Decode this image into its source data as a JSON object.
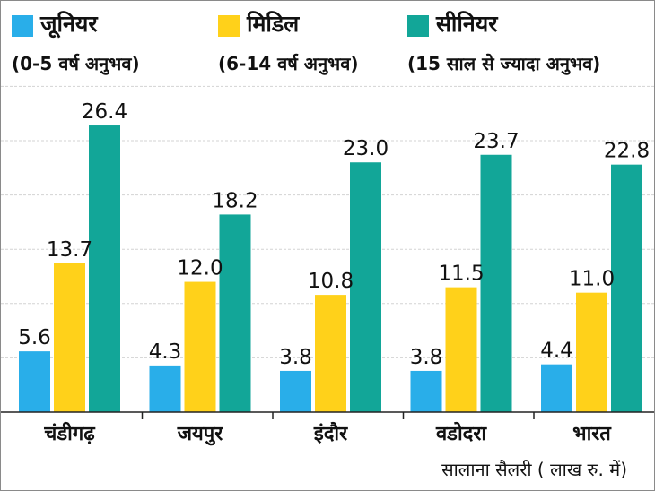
{
  "chart_data": {
    "type": "bar",
    "categories": [
      "चंडीगढ़",
      "जयपुर",
      "इंदौर",
      "वडोदरा",
      "भारत"
    ],
    "series": [
      {
        "name": "जूनियर",
        "subtitle": "(0-5 वर्ष अनुभव)",
        "color": "#29aee9",
        "values": [
          5.6,
          4.3,
          3.8,
          3.8,
          4.4
        ]
      },
      {
        "name": "मिडिल",
        "subtitle": "(6-14 वर्ष अनुभव)",
        "color": "#ffd11a",
        "values": [
          13.7,
          12.0,
          10.8,
          11.5,
          11.0
        ]
      },
      {
        "name": "सीनियर",
        "subtitle": "(15 साल से ज्यादा  अनुभव)",
        "color": "#12a698",
        "values": [
          26.4,
          18.2,
          23.0,
          23.7,
          22.8
        ]
      }
    ],
    "value_labels": [
      [
        "5.6",
        "4.3",
        "3.8",
        "3.8",
        "4.4"
      ],
      [
        "13.7",
        "12.0",
        "10.8",
        "11.5",
        "11.0"
      ],
      [
        "26.4",
        "18.2",
        "23.0",
        "23.7",
        "22.8"
      ]
    ],
    "title": "",
    "xlabel": "सालाना सैलरी ( लाख रु. में)",
    "ylabel": "",
    "ylim": [
      0,
      30
    ],
    "grid": true,
    "legend_position": "top"
  }
}
